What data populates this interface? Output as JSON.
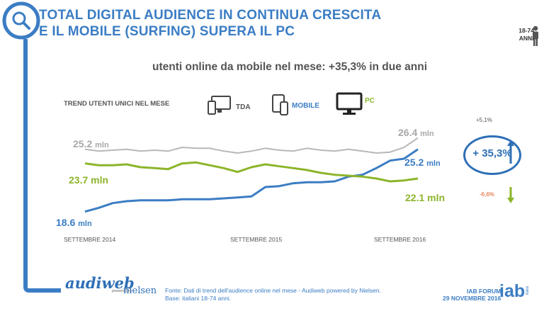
{
  "header": {
    "title_line1": "TOTAL DIGITAL AUDIENCE IN CONTINUA CRESCITA",
    "title_line2": "E IL MOBILE (SURFING) SUPERA IL PC",
    "subtitle": "utenti online da mobile nel mese: +35,3% in due anni",
    "age_line1": "18-74",
    "age_line2": "ANNI"
  },
  "legend": {
    "trend_label": "TREND UTENTI UNICI NEL MESE",
    "tda": "TDA",
    "mobile": "MOBILE",
    "pc": "PC"
  },
  "colors": {
    "tda": "#b8b8b8",
    "mobile": "#3b7dc4",
    "pc": "#8cb52a",
    "brand": "#3b7dc4"
  },
  "labels": {
    "tda_start": "25.2",
    "tda_start_unit": "mln",
    "tda_end": "26.4",
    "tda_end_unit": "mln",
    "pc_start": "23.7 mln",
    "pc_end": "22.1 mln",
    "mobile_start": "18.6",
    "mobile_start_unit": "mln",
    "mobile_end": "25.2",
    "mobile_end_unit": "mln"
  },
  "growth": {
    "tda": "+5,1%",
    "mobile": "+ 35,3%",
    "pc": "-6,6%"
  },
  "chart_data": {
    "type": "line",
    "x": [
      "SETTEMBRE 2014",
      "",
      "",
      "",
      "",
      "",
      "",
      "",
      "",
      "",
      "",
      "",
      "SETTEMBRE 2015",
      "",
      "",
      "",
      "",
      "",
      "",
      "",
      "",
      "",
      "",
      "",
      "SETTEMBRE 2016"
    ],
    "x_ticks": [
      "SETTEMBRE 2014",
      "SETTEMBRE 2015",
      "SETTEMBRE 2016"
    ],
    "ylim": [
      17,
      27.5
    ],
    "series": [
      {
        "name": "TDA",
        "values": [
          25.2,
          25.0,
          25.1,
          25.2,
          25.0,
          25.1,
          25.0,
          25.4,
          25.3,
          25.3,
          25.0,
          24.8,
          25.0,
          25.3,
          25.1,
          25.0,
          25.3,
          25.1,
          25.0,
          25.2,
          25.0,
          24.8,
          24.9,
          25.4,
          26.4
        ]
      },
      {
        "name": "MOBILE",
        "values": [
          18.6,
          19.0,
          19.5,
          19.7,
          19.8,
          19.8,
          19.8,
          19.9,
          19.9,
          19.9,
          20.0,
          20.1,
          20.2,
          21.2,
          21.3,
          21.6,
          21.7,
          21.7,
          21.8,
          22.3,
          22.5,
          23.2,
          24.0,
          24.2,
          25.2
        ]
      },
      {
        "name": "PC",
        "values": [
          23.7,
          23.5,
          23.5,
          23.6,
          23.3,
          23.2,
          23.1,
          23.7,
          23.8,
          23.5,
          23.2,
          22.8,
          23.3,
          23.6,
          23.4,
          23.2,
          23.0,
          22.7,
          22.5,
          22.4,
          22.3,
          22.1,
          21.8,
          21.9,
          22.1
        ]
      }
    ]
  },
  "footer": {
    "audiweb": "audiweb",
    "powered": "powered by",
    "nielsen": "nielsen",
    "source_line1": "Fonte: Dati di trend dell'audience online nel mese - Audiweb powered by Nielsen.",
    "source_line2": "Base: italiani 18-74 anni.",
    "forum_line1": "IAB FORUM",
    "forum_line2": "29 NOVEMBRE 2016",
    "iab": "iab",
    "iab_sub": "italia"
  }
}
